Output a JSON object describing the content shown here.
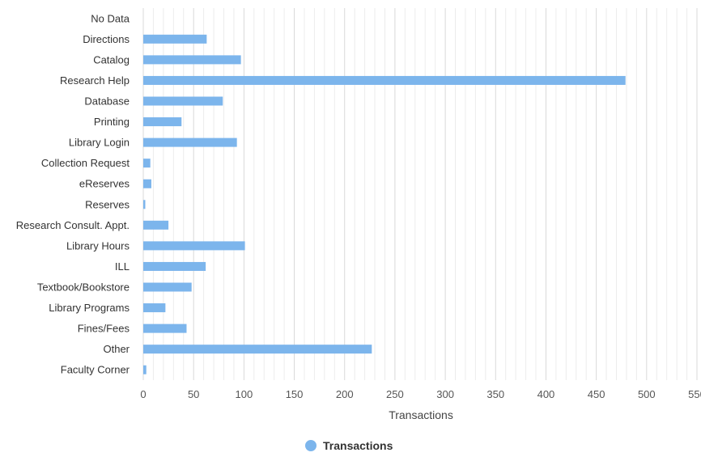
{
  "chart_data": {
    "type": "bar",
    "orientation": "horizontal",
    "title": "",
    "xlabel": "Transactions",
    "ylabel": "",
    "xlim": [
      0,
      550
    ],
    "x_ticks": [
      0,
      50,
      100,
      150,
      200,
      250,
      300,
      350,
      400,
      450,
      500,
      550
    ],
    "minor_grid_step": 10,
    "grid": true,
    "legend_position": "bottom-center",
    "bar_color": "#7cb5ec",
    "categories": [
      "No Data",
      "Directions",
      "Catalog",
      "Research Help",
      "Database",
      "Printing",
      "Library Login",
      "Collection Request",
      "eReserves",
      "Reserves",
      "Research Consult. Appt.",
      "Library Hours",
      "ILL",
      "Textbook/Bookstore",
      "Library Programs",
      "Fines/Fees",
      "Other",
      "Faculty Corner"
    ],
    "series": [
      {
        "name": "Transactions",
        "values": [
          0,
          63,
          97,
          479,
          79,
          38,
          93,
          7,
          8,
          2,
          25,
          101,
          62,
          48,
          22,
          43,
          227,
          3
        ]
      }
    ]
  }
}
